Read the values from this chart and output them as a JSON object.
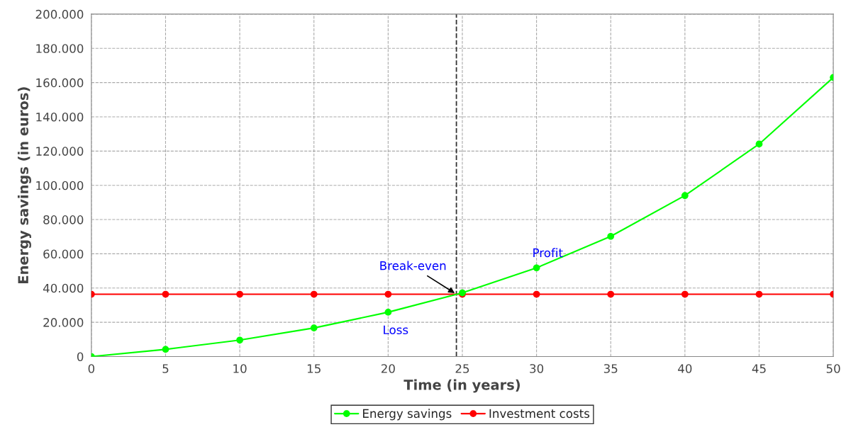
{
  "chart_data": {
    "type": "line",
    "xlabel": "Time (in years)",
    "ylabel": "Energy savings (in euros)",
    "x": [
      0,
      5,
      10,
      15,
      20,
      25,
      30,
      35,
      40,
      45,
      50
    ],
    "series": [
      {
        "name": "Energy savings",
        "color": "#00ff00",
        "values": [
          0,
          4200,
          9600,
          16700,
          25900,
          37200,
          51800,
          70200,
          94000,
          124100,
          163000
        ]
      },
      {
        "name": "Investment costs",
        "color": "#ff0000",
        "values": [
          36400,
          36400,
          36400,
          36400,
          36400,
          36400,
          36400,
          36400,
          36400,
          36400,
          36400
        ]
      }
    ],
    "xlim": [
      0,
      50
    ],
    "xticks": [
      0,
      5,
      10,
      15,
      20,
      25,
      30,
      35,
      40,
      45,
      50
    ],
    "ylim": [
      0,
      200000
    ],
    "yticks": [
      {
        "value": 0,
        "label": "0"
      },
      {
        "value": 20000,
        "label": "20.000"
      },
      {
        "value": 40000,
        "label": "40.000"
      },
      {
        "value": 60000,
        "label": "60.000"
      },
      {
        "value": 80000,
        "label": "80.000"
      },
      {
        "value": 100000,
        "label": "100.000"
      },
      {
        "value": 120000,
        "label": "120.000"
      },
      {
        "value": 140000,
        "label": "140.000"
      },
      {
        "value": 160000,
        "label": "160.000"
      },
      {
        "value": 180000,
        "label": "180.000"
      },
      {
        "value": 200000,
        "label": "200.000"
      }
    ],
    "ref_lines": [
      {
        "axis": "x",
        "value": 24.6,
        "color": "#333333",
        "line_style": "dashed"
      }
    ],
    "annotations": [
      {
        "text": "Break-even",
        "x": 24.6,
        "y": 36400
      },
      "Profit",
      "Loss"
    ],
    "grid": true,
    "legend": "bottom",
    "marker": "circle",
    "line_style": "solid"
  }
}
